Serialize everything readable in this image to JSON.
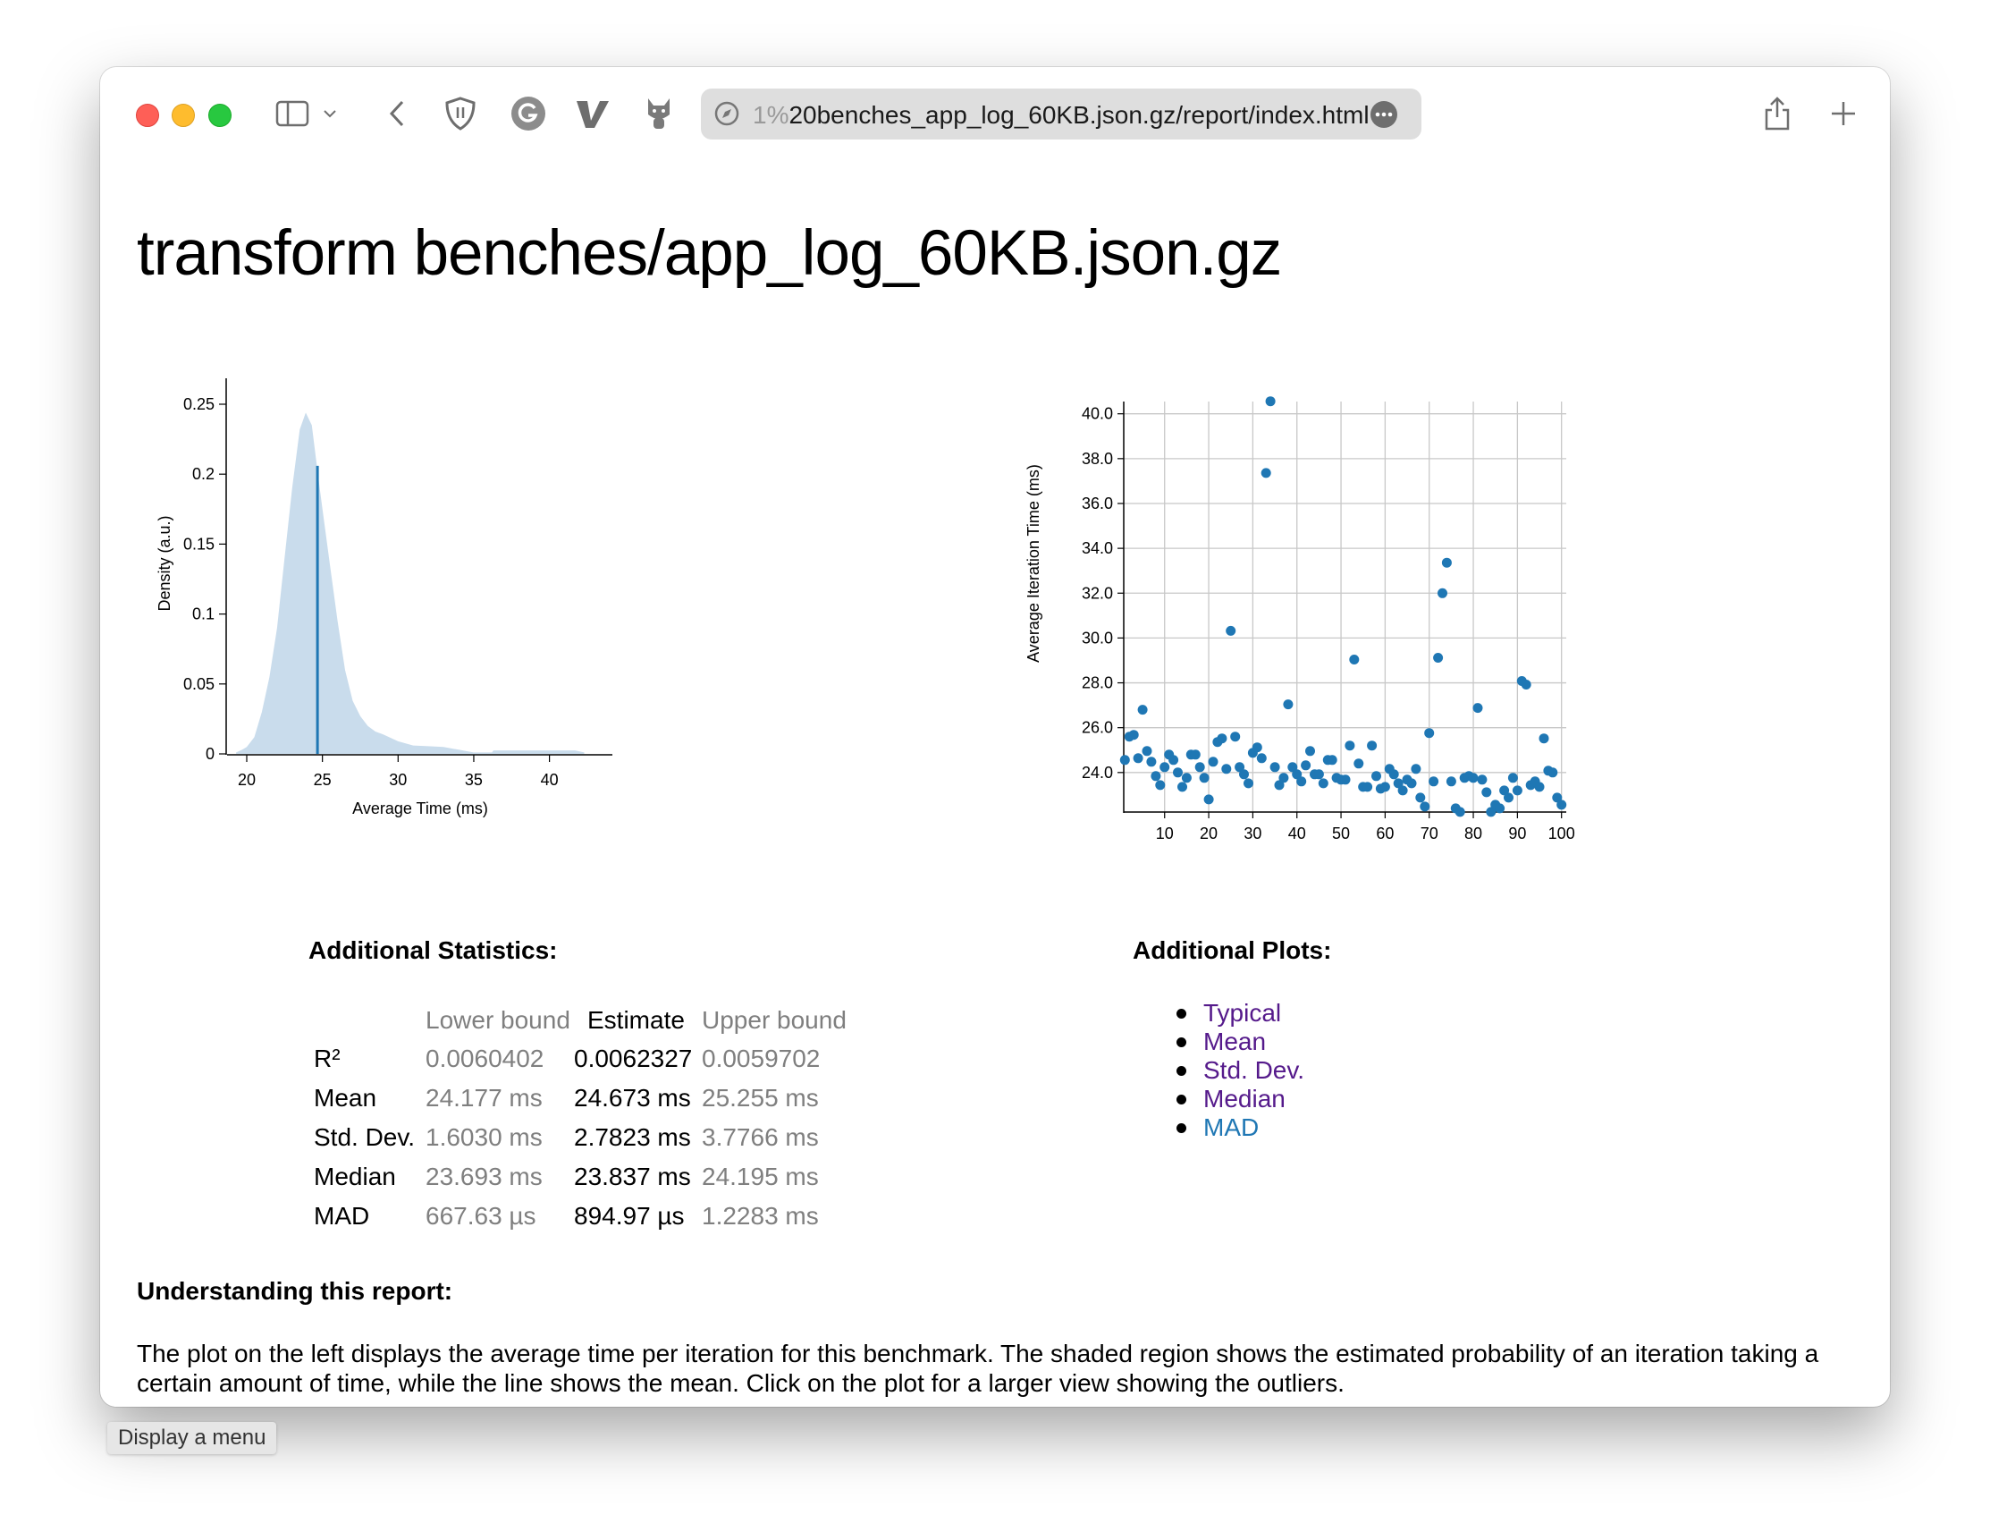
{
  "browser": {
    "url_faded": "1%",
    "url": "20benches_app_log_60KB.json.gz/report/index.html",
    "tooltip": "Display a menu"
  },
  "page": {
    "title": "transform benches/app_log_60KB.json.gz"
  },
  "chart_data": [
    {
      "type": "area",
      "xlabel": "Average Time (ms)",
      "ylabel": "Density (a.u.)",
      "xlim": [
        18.7,
        44.1
      ],
      "ylim": [
        0,
        0.27
      ],
      "xticks": [
        "20",
        "25",
        "30",
        "35",
        "40"
      ],
      "yticks": [
        "0",
        "0.05",
        "0.1",
        "0.15",
        "0.2",
        "0.25"
      ],
      "fill_color": "#c9dcec",
      "line_color": "#1f77b4",
      "mean_line": {
        "x": 24.673,
        "y": 0.206
      },
      "x": [
        19.3,
        19.7,
        20,
        20.5,
        21,
        21.5,
        22,
        22.5,
        23,
        23.5,
        23.9,
        24.3,
        24.7,
        25,
        25.5,
        26,
        26.5,
        27,
        27.5,
        28,
        28.5,
        29,
        30,
        31,
        32,
        33,
        34,
        35,
        36.2,
        36.3,
        41.7,
        42.3
      ],
      "y": [
        0.001,
        0.003,
        0.005,
        0.012,
        0.03,
        0.055,
        0.09,
        0.14,
        0.19,
        0.232,
        0.244,
        0.235,
        0.2,
        0.175,
        0.135,
        0.095,
        0.06,
        0.038,
        0.027,
        0.02,
        0.016,
        0.014,
        0.009,
        0.006,
        0.0055,
        0.005,
        0.003,
        0.001,
        0.001,
        0.0025,
        0.0025,
        0.001
      ]
    },
    {
      "type": "scatter",
      "xlabel": "",
      "ylabel": "Average Iteration Time (ms)",
      "xlim": [
        0,
        100
      ],
      "ylim": [
        22.2,
        40.6
      ],
      "grid": true,
      "xticks": [
        "10",
        "20",
        "30",
        "40",
        "50",
        "60",
        "70",
        "80",
        "90",
        "100"
      ],
      "yticks": [
        "24.0",
        "26.0",
        "28.0",
        "30.0",
        "32.0",
        "34.0",
        "36.0",
        "38.0",
        "40.0"
      ],
      "color": "#1f77b4",
      "y": [
        24.56,
        25.6,
        25.68,
        24.64,
        26.8,
        24.96,
        24.48,
        23.84,
        23.44,
        24.24,
        24.8,
        24.56,
        24.0,
        23.36,
        23.76,
        24.8,
        24.8,
        24.24,
        23.76,
        22.8,
        24.48,
        25.36,
        25.52,
        24.16,
        30.32,
        25.6,
        24.24,
        23.92,
        23.52,
        24.88,
        25.12,
        24.64,
        37.36,
        40.56,
        24.24,
        23.44,
        23.76,
        27.04,
        24.24,
        23.92,
        23.6,
        24.32,
        24.96,
        23.92,
        23.92,
        23.52,
        24.56,
        24.56,
        23.76,
        23.68,
        23.68,
        25.2,
        29.04,
        24.4,
        23.36,
        23.36,
        25.2,
        23.84,
        23.28,
        23.36,
        24.16,
        23.92,
        23.52,
        23.2,
        23.68,
        23.52,
        24.16,
        22.88,
        22.48,
        25.76,
        23.6,
        29.12,
        32.0,
        33.36,
        23.6,
        22.4,
        22.24,
        23.76,
        23.84,
        23.76,
        26.88,
        23.68,
        23.12,
        22.24,
        22.56,
        22.4,
        23.2,
        22.88,
        23.76,
        23.2,
        28.08,
        27.92,
        23.44,
        23.6,
        23.36,
        25.52,
        24.08,
        24.0,
        22.88,
        22.56
      ]
    }
  ],
  "stats": {
    "heading": "Additional Statistics:",
    "columns": [
      "Lower bound",
      "Estimate",
      "Upper bound"
    ],
    "rows": [
      {
        "label": "R²",
        "lower": "0.0060402",
        "estimate": "0.0062327",
        "upper": "0.0059702"
      },
      {
        "label": "Mean",
        "lower": "24.177 ms",
        "estimate": "24.673 ms",
        "upper": "25.255 ms"
      },
      {
        "label": "Std. Dev.",
        "lower": "1.6030 ms",
        "estimate": "2.7823 ms",
        "upper": "3.7766 ms"
      },
      {
        "label": "Median",
        "lower": "23.693 ms",
        "estimate": "23.837 ms",
        "upper": "24.195 ms"
      },
      {
        "label": "MAD",
        "lower": "667.63 µs",
        "estimate": "894.97 µs",
        "upper": "1.2283 ms"
      }
    ]
  },
  "plots": {
    "heading": "Additional Plots:",
    "links": [
      {
        "label": "Typical",
        "color": "#551a8b"
      },
      {
        "label": "Mean",
        "color": "#551a8b"
      },
      {
        "label": "Std. Dev.",
        "color": "#551a8b"
      },
      {
        "label": "Median",
        "color": "#551a8b"
      },
      {
        "label": "MAD",
        "color": "#1f77b4"
      }
    ]
  },
  "understanding": {
    "heading": "Understanding this report:",
    "text": "The plot on the left displays the average time per iteration for this benchmark. The shaded region shows the estimated probability of an iteration taking a certain amount of time, while the line shows the mean. Click on the plot for a larger view showing the outliers."
  }
}
